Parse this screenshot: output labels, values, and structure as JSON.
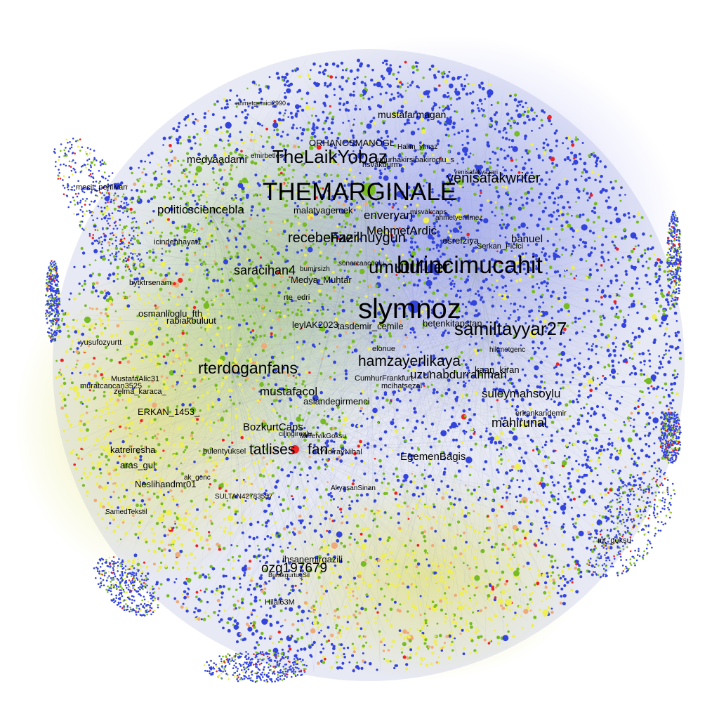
{
  "graph": {
    "type": "network",
    "node_colors": [
      "#3344dd",
      "#77bb22",
      "#eeee55",
      "#ee2222",
      "#eeaa77"
    ],
    "labels": [
      {
        "text": "slymnoz",
        "tier": 1
      },
      {
        "text": "THEMARGINALE",
        "tier": 2
      },
      {
        "text": "birincimucahit",
        "tier": 2
      },
      {
        "text": "samiltayyar27",
        "tier": 3
      },
      {
        "text": "TheLaikYobaz",
        "tier": 3
      },
      {
        "text": "umutuluer",
        "tier": 3
      },
      {
        "text": "rterdoganfans",
        "tier": 3
      },
      {
        "text": "yenisafakwriter",
        "tier": 4
      },
      {
        "text": "hamzayerlikaya",
        "tier": 4
      },
      {
        "text": "recebenzer",
        "tier": 4
      },
      {
        "text": "Fazilhuygun",
        "tier": 4
      },
      {
        "text": "MehmetArdic",
        "tier": 4
      },
      {
        "text": "ozg197679",
        "tier": 4
      },
      {
        "text": "tatlises",
        "tier": 4
      },
      {
        "text": "fan",
        "tier": 4
      },
      {
        "text": "politicsciencebla",
        "tier": 4
      },
      {
        "text": "mahirunal",
        "tier": 4
      },
      {
        "text": "suleymansoylu",
        "tier": 4
      },
      {
        "text": "uzunabdurrahman",
        "tier": 4
      },
      {
        "text": "saracihan4",
        "tier": 5
      },
      {
        "text": "enveryan",
        "tier": 5
      },
      {
        "text": "mustafacol",
        "tier": 5
      },
      {
        "text": "BozkurtCaps",
        "tier": 5
      },
      {
        "text": "EgemenBagis",
        "tier": 5
      },
      {
        "text": "medyaadami",
        "tier": 5
      },
      {
        "text": "mustafarmagan",
        "tier": 5
      },
      {
        "text": "banuel",
        "tier": 5
      },
      {
        "text": "katreiresha",
        "tier": 6
      },
      {
        "text": "osmanlioglu_fth",
        "tier": 6
      },
      {
        "text": "rabiakbuluut",
        "tier": 6
      },
      {
        "text": "tasdemir_cemile",
        "tier": 6
      },
      {
        "text": "leylAK2023",
        "tier": 6
      },
      {
        "text": "malatyagercek",
        "tier": 6
      },
      {
        "text": "ORHANOSMANOGL",
        "tier": 6
      },
      {
        "text": "esrefziya",
        "tier": 6
      },
      {
        "text": "kaan_kiran",
        "tier": 6
      },
      {
        "text": "betenkitapstan",
        "tier": 6
      },
      {
        "text": "aslandegirmenci",
        "tier": 6
      },
      {
        "text": "Medya_Muhtar",
        "tier": 6
      },
      {
        "text": "ERKAN_1453_",
        "tier": 6
      },
      {
        "text": "Neslihandmr01",
        "tier": 6
      },
      {
        "text": "aras_gul",
        "tier": 6
      },
      {
        "text": "ihsanemirgazili",
        "tier": 6
      },
      {
        "text": "icindenhayat1",
        "tier": 7
      },
      {
        "text": "bytktrsenam",
        "tier": 7
      },
      {
        "text": "yusufozyurtt",
        "tier": 7
      },
      {
        "text": "MustafaAlic31",
        "tier": 7
      },
      {
        "text": "muratcancan3525",
        "tier": 7
      },
      {
        "text": "zelma_karaca_",
        "tier": 7
      },
      {
        "text": "mecit_pehlivan",
        "tier": 7
      },
      {
        "text": "rte_edri",
        "tier": 7
      },
      {
        "text": "elonue",
        "tier": 7
      },
      {
        "text": "CumhurFrankfurt",
        "tier": 7
      },
      {
        "text": "mcihatsezal",
        "tier": 7
      },
      {
        "text": "Serkan_Ficici",
        "tier": 7
      },
      {
        "text": "hikmetgenc",
        "tier": 7
      },
      {
        "text": "erkankandemir",
        "tier": 7
      },
      {
        "text": "mt_goksu",
        "tier": 7
      },
      {
        "text": "Hilal63M",
        "tier": 7
      },
      {
        "text": "bulentyuksel",
        "tier": 7
      },
      {
        "text": "YildirayNihal",
        "tier": 7
      },
      {
        "text": "SULTAN42783557",
        "tier": 7
      },
      {
        "text": "AkyasanSinan",
        "tier": 7
      },
      {
        "text": "SamedTekstil",
        "tier": 7
      },
      {
        "text": "ak_genc",
        "tier": 7
      },
      {
        "text": "cilingiroglu",
        "tier": 7
      },
      {
        "text": "MrTefvikGoksu",
        "tier": 7
      },
      {
        "text": "BurakgurtugSil",
        "tier": 7
      },
      {
        "text": "ahmetgemici2990",
        "tier": 7
      },
      {
        "text": "emirbetlese",
        "tier": 7
      },
      {
        "text": "Halim_ylmaz",
        "tier": 7
      },
      {
        "text": "ugurhakirsibakiroglu_s",
        "tier": 7
      },
      {
        "text": "hsvakdurm",
        "tier": 7
      },
      {
        "text": "yenisafakyazari",
        "tier": 7
      },
      {
        "text": "misvakcaps",
        "tier": 7
      },
      {
        "text": "ahmetyenilmez",
        "tier": 7
      },
      {
        "text": "bumirsizh",
        "tier": 7
      },
      {
        "text": "sonercaacoglu",
        "tier": 7
      }
    ]
  }
}
